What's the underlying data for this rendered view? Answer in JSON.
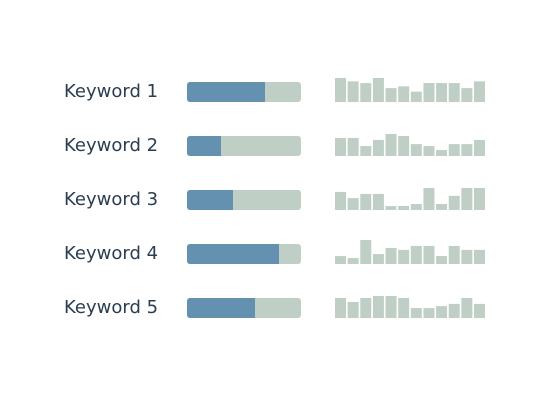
{
  "chart_data": {
    "type": "table",
    "rows": [
      {
        "label": "Keyword 1",
        "progress": 0.68,
        "trend": [
          1.0,
          0.85,
          0.77,
          1.0,
          0.54,
          0.62,
          0.38,
          0.77,
          0.77,
          0.77,
          0.54,
          0.85
        ]
      },
      {
        "label": "Keyword 2",
        "progress": 0.3,
        "trend": [
          0.73,
          0.73,
          0.36,
          0.64,
          0.91,
          0.82,
          0.45,
          0.36,
          0.18,
          0.45,
          0.45,
          0.64
        ]
      },
      {
        "label": "Keyword 3",
        "progress": 0.4,
        "trend": [
          0.73,
          0.45,
          0.64,
          0.64,
          0.09,
          0.09,
          0.18,
          0.91,
          0.18,
          0.55,
          0.91,
          0.91
        ]
      },
      {
        "label": "Keyword 4",
        "progress": 0.81,
        "trend": [
          0.27,
          0.18,
          1.0,
          0.36,
          0.64,
          0.55,
          0.73,
          0.73,
          0.27,
          0.73,
          0.55,
          0.55
        ]
      },
      {
        "label": "Keyword 5",
        "progress": 0.6,
        "trend": [
          0.82,
          0.64,
          0.82,
          0.91,
          0.91,
          0.82,
          0.36,
          0.36,
          0.45,
          0.55,
          0.82,
          0.55
        ]
      }
    ]
  },
  "colors": {
    "label": "#2b3d4f",
    "progress_fill": "#6591b0",
    "progress_track": "#bfcfc6",
    "trend_bar": "#bfcfc6"
  }
}
